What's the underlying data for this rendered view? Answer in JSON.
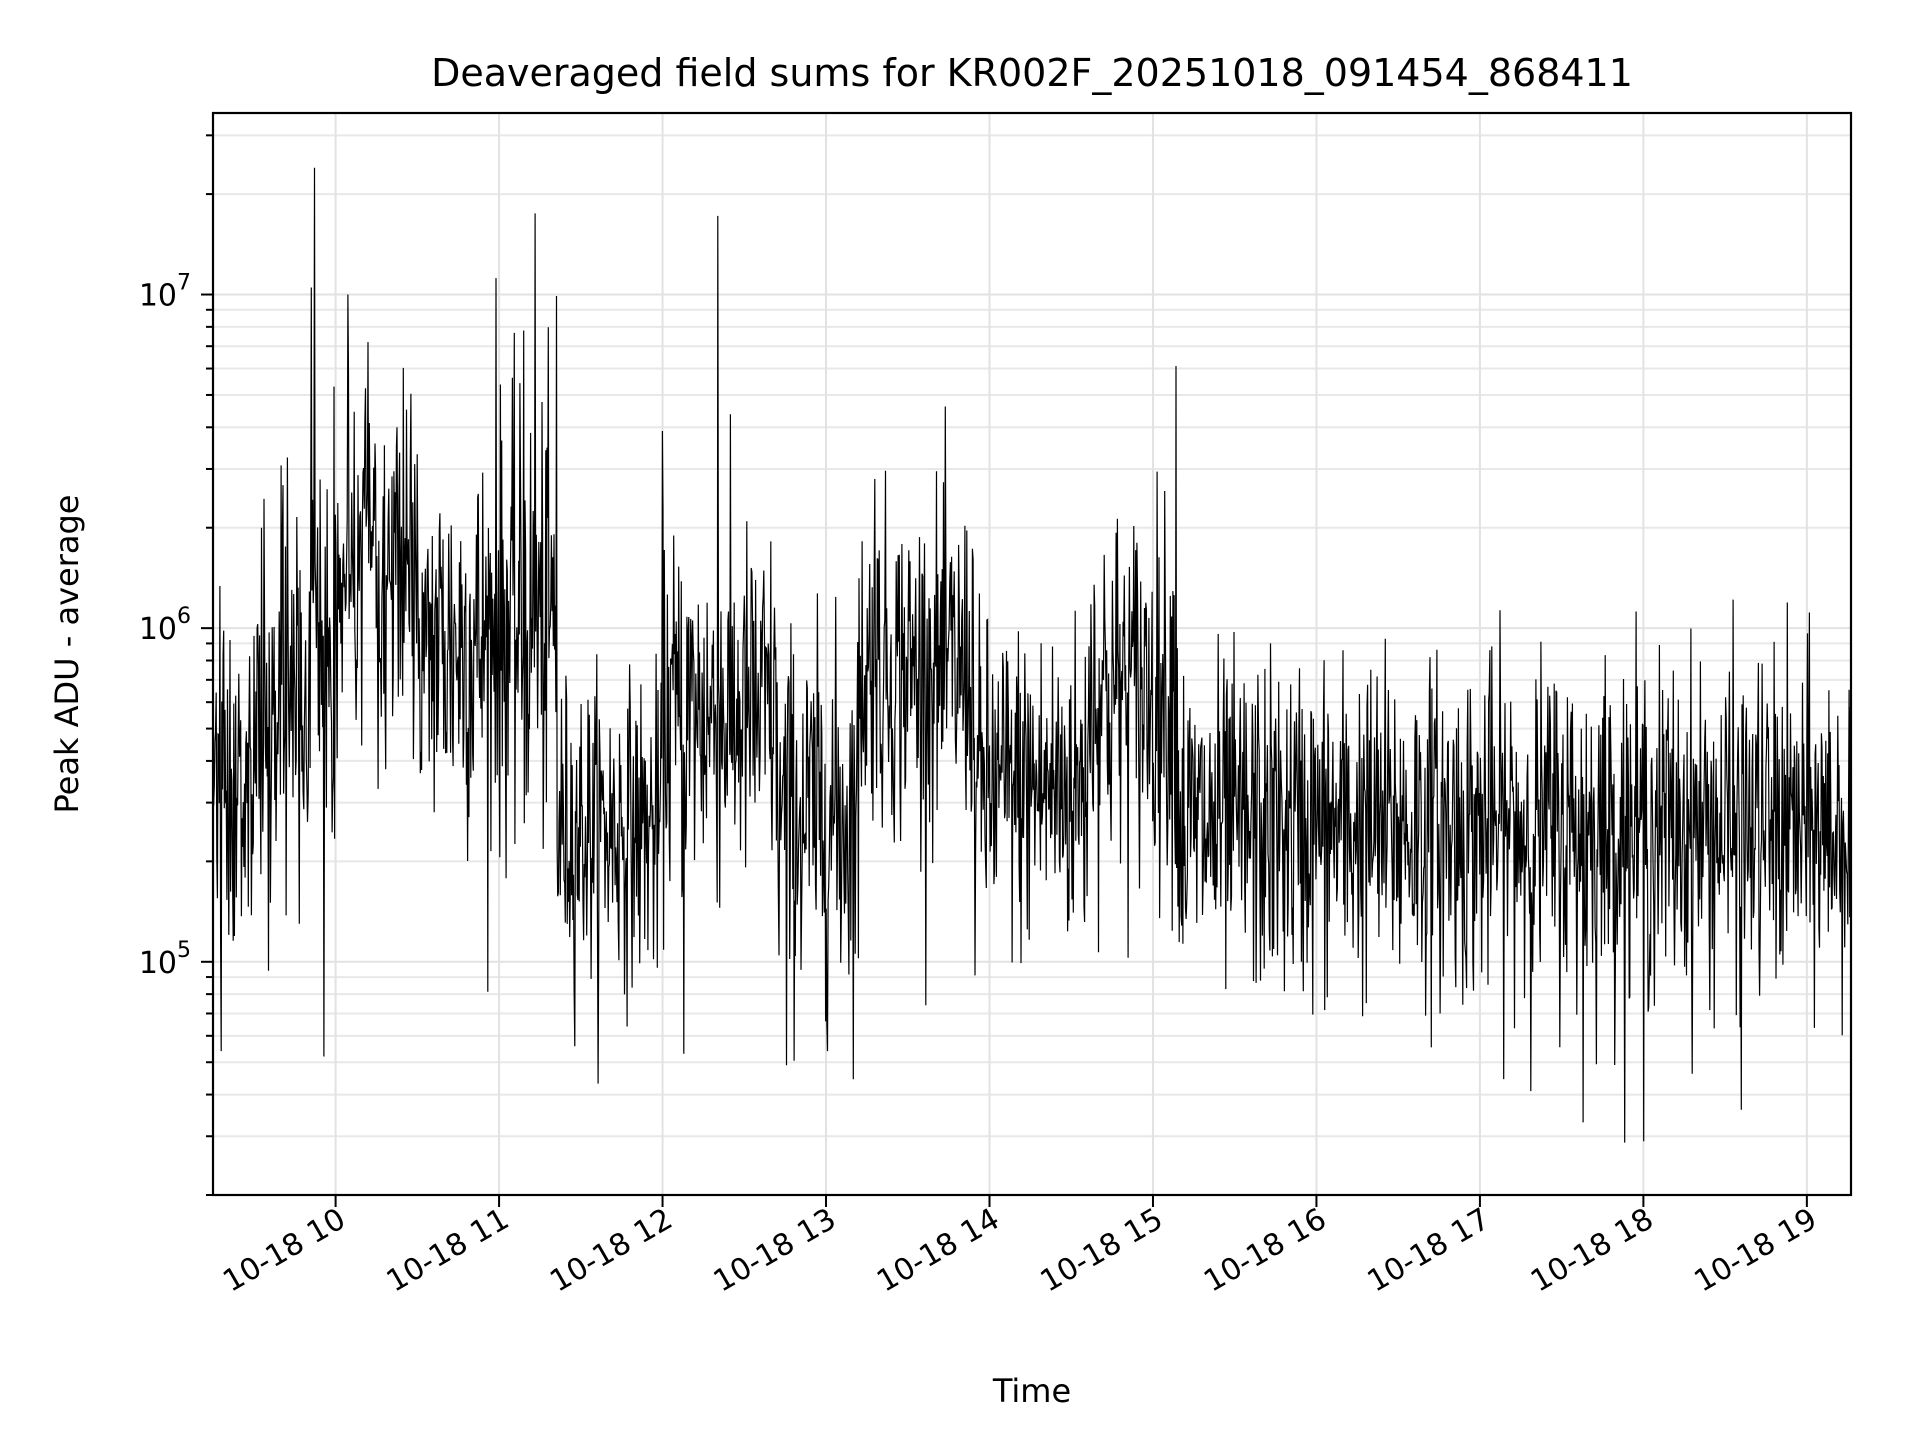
{
  "chart_data": {
    "type": "line",
    "title": "Deaveraged field sums for KR002F_20251018_091454_868411",
    "xlabel": "Time",
    "ylabel": "Peak ADU - average",
    "yscale": "log",
    "ylim": [
      20000,
      35000000
    ],
    "xlim_hours": [
      9.25,
      19.27
    ],
    "grid": true,
    "legend": "none",
    "x_tick_values_hours": [
      10,
      11,
      12,
      13,
      14,
      15,
      16,
      17,
      18,
      19
    ],
    "x_tick_labels": [
      "10-18 10",
      "10-18 11",
      "10-18 12",
      "10-18 13",
      "10-18 14",
      "10-18 15",
      "10-18 16",
      "10-18 17",
      "10-18 18",
      "10-18 19"
    ],
    "y_tick_values": [
      100000,
      1000000,
      10000000
    ],
    "y_tick_labels": [
      {
        "base": "10",
        "exp": "5"
      },
      {
        "base": "10",
        "exp": "6"
      },
      {
        "base": "10",
        "exp": "7"
      }
    ],
    "series": [
      {
        "name": "Peak ADU - average",
        "color": "#000000",
        "sample_count": 2600,
        "segments": [
          {
            "start_hours": 9.25,
            "end_hours": 9.5,
            "median": 350000,
            "spread": 0.55
          },
          {
            "start_hours": 9.5,
            "end_hours": 9.85,
            "median": 700000,
            "spread": 0.6
          },
          {
            "start_hours": 9.85,
            "end_hours": 10.0,
            "median": 900000,
            "spread": 0.7
          },
          {
            "start_hours": 10.0,
            "end_hours": 10.5,
            "median": 1600000,
            "spread": 0.6
          },
          {
            "start_hours": 10.5,
            "end_hours": 11.0,
            "median": 900000,
            "spread": 0.6
          },
          {
            "start_hours": 11.0,
            "end_hours": 11.35,
            "median": 1000000,
            "spread": 0.65
          },
          {
            "start_hours": 11.35,
            "end_hours": 12.0,
            "median": 250000,
            "spread": 0.45
          },
          {
            "start_hours": 12.0,
            "end_hours": 12.7,
            "median": 550000,
            "spread": 0.55
          },
          {
            "start_hours": 12.7,
            "end_hours": 13.2,
            "median": 270000,
            "spread": 0.55
          },
          {
            "start_hours": 13.2,
            "end_hours": 13.9,
            "median": 750000,
            "spread": 0.5
          },
          {
            "start_hours": 13.9,
            "end_hours": 14.6,
            "median": 330000,
            "spread": 0.5
          },
          {
            "start_hours": 14.6,
            "end_hours": 15.15,
            "median": 650000,
            "spread": 0.55
          },
          {
            "start_hours": 15.15,
            "end_hours": 19.27,
            "median": 250000,
            "spread": 0.5
          }
        ],
        "spikes": [
          {
            "x_hours": 9.87,
            "y": 24000000
          },
          {
            "x_hours": 9.85,
            "y": 10500000
          },
          {
            "x_hours": 10.98,
            "y": 11200000
          },
          {
            "x_hours": 11.22,
            "y": 17500000
          },
          {
            "x_hours": 11.15,
            "y": 7800000
          },
          {
            "x_hours": 11.35,
            "y": 9900000
          },
          {
            "x_hours": 12.34,
            "y": 17200000
          },
          {
            "x_hours": 10.2,
            "y": 7200000
          },
          {
            "x_hours": 15.14,
            "y": 6100000
          },
          {
            "x_hours": 12.0,
            "y": 3900000
          },
          {
            "x_hours": 13.3,
            "y": 2800000
          },
          {
            "x_hours": 9.93,
            "y": 52000
          },
          {
            "x_hours": 12.13,
            "y": 53000
          },
          {
            "x_hours": 12.76,
            "y": 49000
          },
          {
            "x_hours": 18.0,
            "y": 29000
          },
          {
            "x_hours": 17.63,
            "y": 33000
          },
          {
            "x_hours": 18.6,
            "y": 36000
          },
          {
            "x_hours": 9.3,
            "y": 54000
          }
        ]
      }
    ]
  }
}
